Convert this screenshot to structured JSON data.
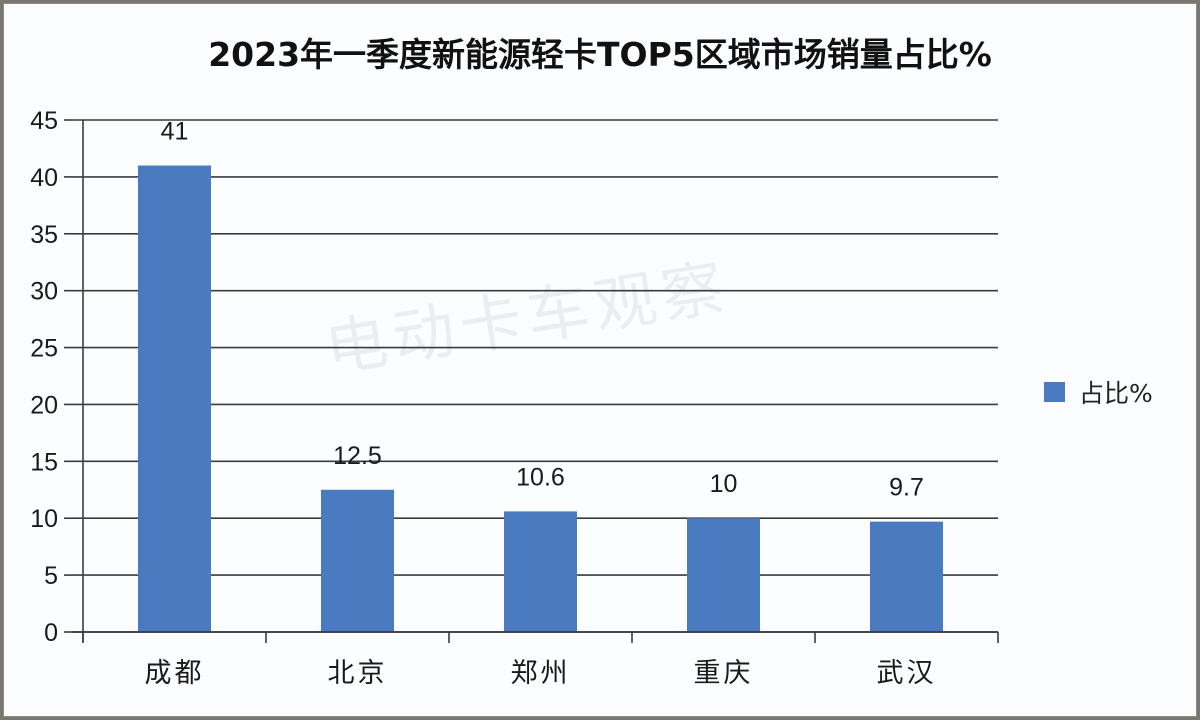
{
  "title": "2023年一季度新能源轻卡TOP5区域市场销量占比%",
  "watermark": "电动卡车观察",
  "legend": {
    "label": "占比%",
    "color": "#4a7bc1"
  },
  "colors": {
    "bar": "#4a7bc1",
    "grid": "#3a3a44",
    "text": "#1a1a1a"
  },
  "chart_data": {
    "type": "bar",
    "title": "2023年一季度新能源轻卡TOP5区域市场销量占比%",
    "categories": [
      "成都",
      "北京",
      "郑州",
      "重庆",
      "武汉"
    ],
    "series": [
      {
        "name": "占比%",
        "values": [
          41,
          12.5,
          10.6,
          10,
          9.7
        ]
      }
    ],
    "data_labels": [
      "41",
      "12.5",
      "10.6",
      "10",
      "9.7"
    ],
    "xlabel": "",
    "ylabel": "",
    "ylim": [
      0,
      45
    ],
    "yticks": [
      0,
      5,
      10,
      15,
      20,
      25,
      30,
      35,
      40,
      45
    ],
    "grid": true,
    "legend_position": "right"
  }
}
